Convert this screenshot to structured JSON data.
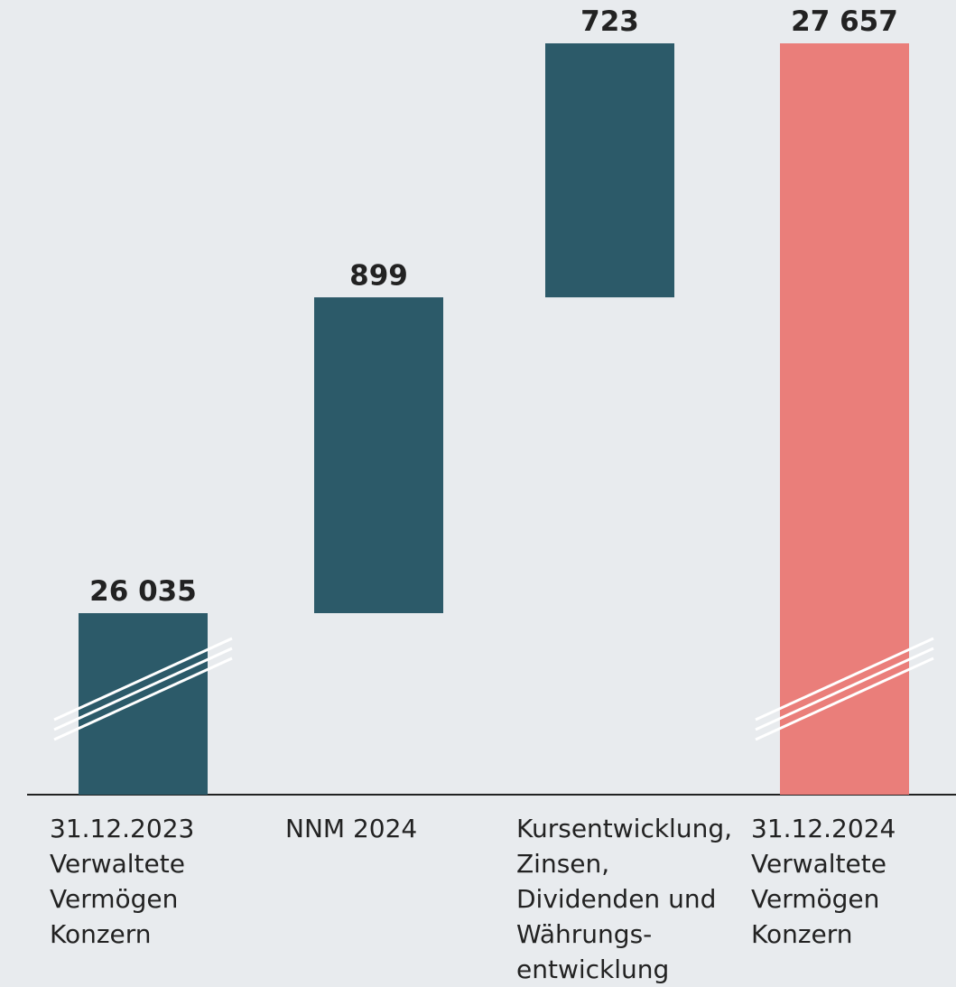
{
  "chart_data": {
    "type": "waterfall",
    "categories": [
      "31.12.2023\nVerwaltete\nVermögen\nKonzern",
      "NNM 2024",
      "Kursentwicklung,\nZinsen,\nDividenden und\nWährungs-\nentwicklung",
      "31.12.2024\nVerwaltete\nVermögen\nKonzern"
    ],
    "values": [
      26035,
      899,
      723,
      27657
    ],
    "value_labels": [
      "26 035",
      "899",
      "723",
      "27 657"
    ],
    "measures": [
      "absolute",
      "relative",
      "relative",
      "total"
    ],
    "colors": [
      "#2c5a69",
      "#2c5a69",
      "#2c5a69",
      "#ea7e7a"
    ],
    "axis_break": true
  }
}
